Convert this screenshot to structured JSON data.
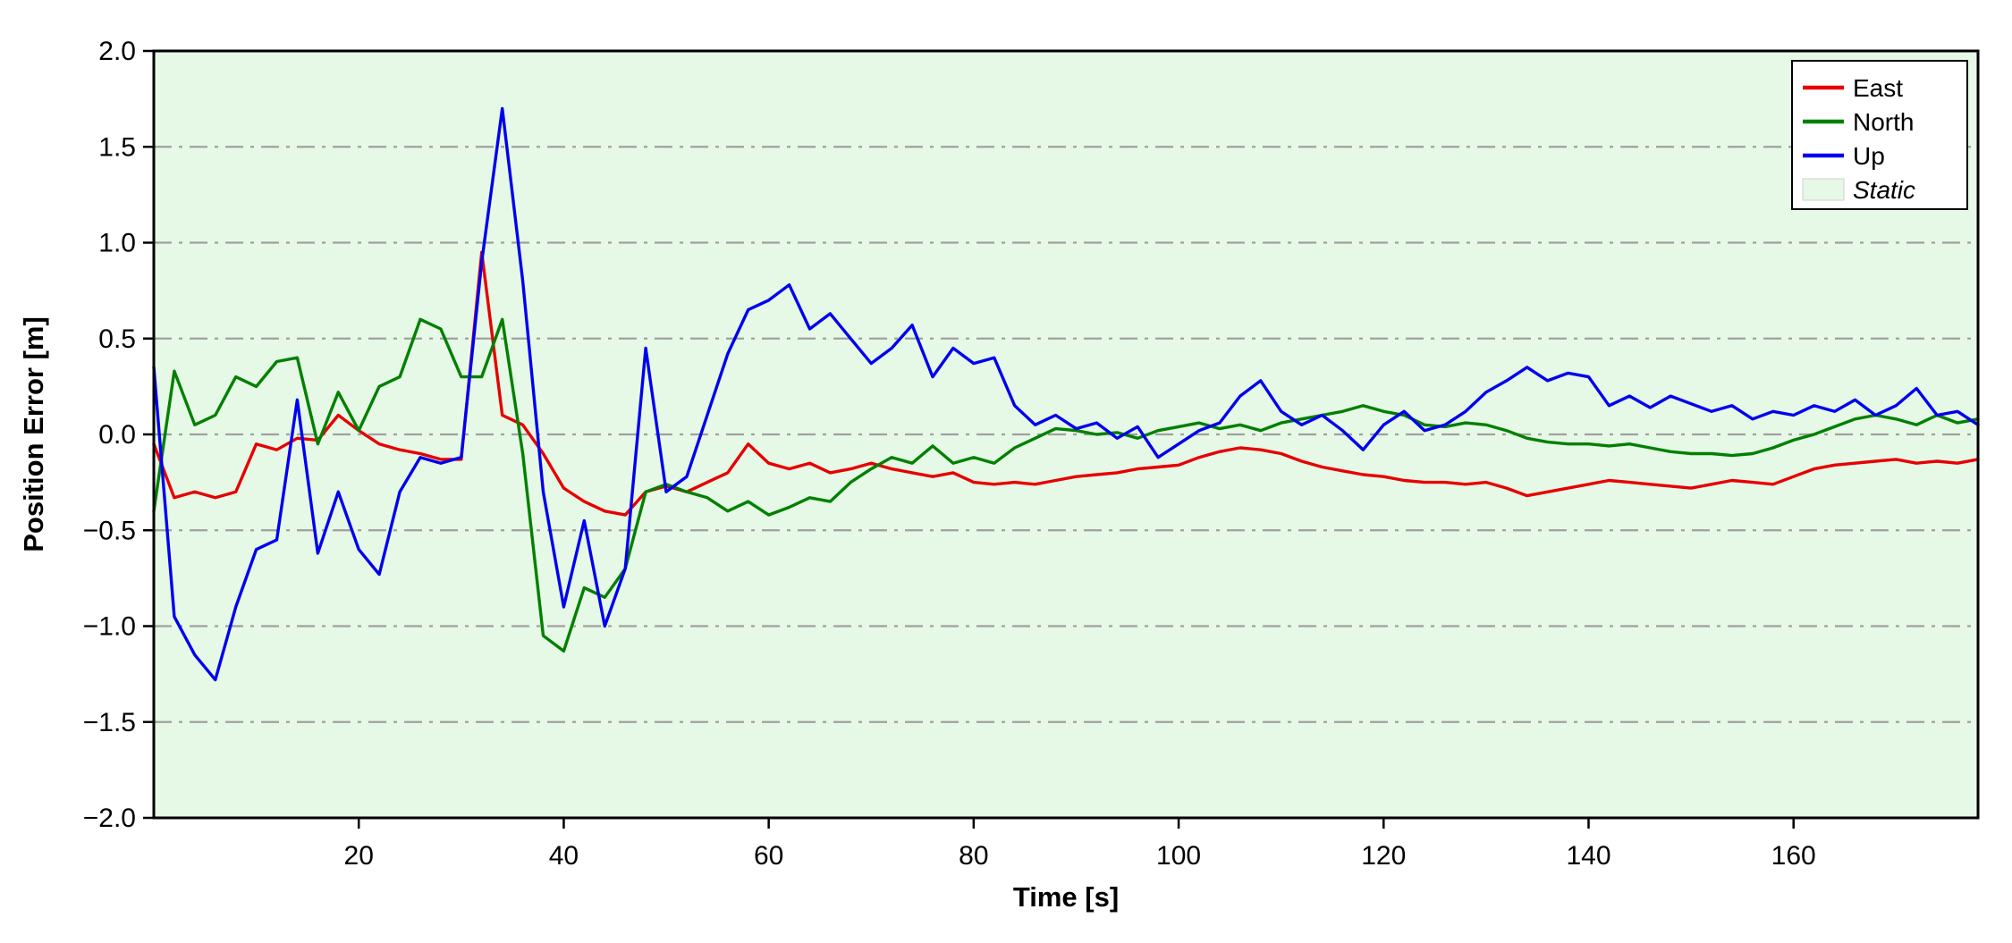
{
  "chart_data": {
    "type": "line",
    "title": "",
    "xlabel": "Time [s]",
    "ylabel": "Position Error [m]",
    "xlim": [
      0,
      178
    ],
    "ylim": [
      -2.0,
      2.0
    ],
    "xticks": [
      20,
      40,
      60,
      80,
      100,
      120,
      140,
      160
    ],
    "yticks": [
      -2.0,
      -1.5,
      -1.0,
      -0.5,
      0.0,
      0.5,
      1.0,
      1.5,
      2.0
    ],
    "grid": "horizontal-dash-dot",
    "grid_color": "#a0a0a0",
    "axis_color": "#000000",
    "background_color": "#e6f8e6",
    "background_label": "Static",
    "legend_position": "upper-right",
    "legend": {
      "entries": [
        {
          "label": "East",
          "swatch": "line",
          "color": "#e60000",
          "italic": false
        },
        {
          "label": "North",
          "swatch": "line",
          "color": "#008000",
          "italic": false
        },
        {
          "label": "Up",
          "swatch": "line",
          "color": "#0000ee",
          "italic": false
        },
        {
          "label": "Static",
          "swatch": "patch",
          "color": "#e6f8e6",
          "italic": true
        }
      ]
    },
    "x": [
      0,
      2,
      4,
      6,
      8,
      10,
      12,
      14,
      16,
      18,
      20,
      22,
      24,
      26,
      28,
      30,
      32,
      34,
      36,
      38,
      40,
      42,
      44,
      46,
      48,
      50,
      52,
      54,
      56,
      58,
      60,
      62,
      64,
      66,
      68,
      70,
      72,
      74,
      76,
      78,
      80,
      82,
      84,
      86,
      88,
      90,
      92,
      94,
      96,
      98,
      100,
      102,
      104,
      106,
      108,
      110,
      112,
      114,
      116,
      118,
      120,
      122,
      124,
      126,
      128,
      130,
      132,
      134,
      136,
      138,
      140,
      142,
      144,
      146,
      148,
      150,
      152,
      154,
      156,
      158,
      160,
      162,
      164,
      166,
      168,
      170,
      172,
      174,
      176,
      178
    ],
    "series": [
      {
        "name": "East",
        "color": "#e60000",
        "values": [
          -0.05,
          -0.33,
          -0.3,
          -0.33,
          -0.3,
          -0.05,
          -0.08,
          -0.02,
          -0.03,
          0.1,
          0.02,
          -0.05,
          -0.08,
          -0.1,
          -0.13,
          -0.13,
          0.95,
          0.1,
          0.05,
          -0.1,
          -0.28,
          -0.35,
          -0.4,
          -0.42,
          -0.3,
          -0.27,
          -0.3,
          -0.25,
          -0.2,
          -0.05,
          -0.15,
          -0.18,
          -0.15,
          -0.2,
          -0.18,
          -0.15,
          -0.18,
          -0.2,
          -0.22,
          -0.2,
          -0.25,
          -0.26,
          -0.25,
          -0.26,
          -0.24,
          -0.22,
          -0.21,
          -0.2,
          -0.18,
          -0.17,
          -0.16,
          -0.12,
          -0.09,
          -0.07,
          -0.08,
          -0.1,
          -0.14,
          -0.17,
          -0.19,
          -0.21,
          -0.22,
          -0.24,
          -0.25,
          -0.25,
          -0.26,
          -0.25,
          -0.28,
          -0.32,
          -0.3,
          -0.28,
          -0.26,
          -0.24,
          -0.25,
          -0.26,
          -0.27,
          -0.28,
          -0.26,
          -0.24,
          -0.25,
          -0.26,
          -0.22,
          -0.18,
          -0.16,
          -0.15,
          -0.14,
          -0.13,
          -0.15,
          -0.14,
          -0.15,
          -0.13
        ]
      },
      {
        "name": "North",
        "color": "#008000",
        "values": [
          -0.4,
          0.33,
          0.05,
          0.1,
          0.3,
          0.25,
          0.38,
          0.4,
          -0.05,
          0.22,
          0.02,
          0.25,
          0.3,
          0.6,
          0.55,
          0.3,
          0.3,
          0.6,
          -0.1,
          -1.05,
          -1.13,
          -0.8,
          -0.85,
          -0.7,
          -0.3,
          -0.26,
          -0.3,
          -0.33,
          -0.4,
          -0.35,
          -0.42,
          -0.38,
          -0.33,
          -0.35,
          -0.25,
          -0.18,
          -0.12,
          -0.15,
          -0.06,
          -0.15,
          -0.12,
          -0.15,
          -0.07,
          -0.02,
          0.03,
          0.02,
          0.0,
          0.01,
          -0.02,
          0.02,
          0.04,
          0.06,
          0.03,
          0.05,
          0.02,
          0.06,
          0.08,
          0.1,
          0.12,
          0.15,
          0.12,
          0.1,
          0.05,
          0.04,
          0.06,
          0.05,
          0.02,
          -0.02,
          -0.04,
          -0.05,
          -0.05,
          -0.06,
          -0.05,
          -0.07,
          -0.09,
          -0.1,
          -0.1,
          -0.11,
          -0.1,
          -0.07,
          -0.03,
          0.0,
          0.04,
          0.08,
          0.1,
          0.08,
          0.05,
          0.1,
          0.06,
          0.08
        ]
      },
      {
        "name": "Up",
        "color": "#0000ee",
        "values": [
          0.35,
          -0.95,
          -1.15,
          -1.28,
          -0.9,
          -0.6,
          -0.55,
          0.18,
          -0.62,
          -0.3,
          -0.6,
          -0.73,
          -0.3,
          -0.12,
          -0.15,
          -0.12,
          0.9,
          1.7,
          0.8,
          -0.3,
          -0.9,
          -0.45,
          -1.0,
          -0.7,
          0.45,
          -0.3,
          -0.22,
          0.1,
          0.42,
          0.65,
          0.7,
          0.78,
          0.55,
          0.63,
          0.5,
          0.37,
          0.45,
          0.57,
          0.3,
          0.45,
          0.37,
          0.4,
          0.15,
          0.05,
          0.1,
          0.03,
          0.06,
          -0.02,
          0.04,
          -0.12,
          -0.05,
          0.02,
          0.06,
          0.2,
          0.28,
          0.12,
          0.05,
          0.1,
          0.02,
          -0.08,
          0.05,
          0.12,
          0.02,
          0.05,
          0.12,
          0.22,
          0.28,
          0.35,
          0.28,
          0.32,
          0.3,
          0.15,
          0.2,
          0.14,
          0.2,
          0.16,
          0.12,
          0.15,
          0.08,
          0.12,
          0.1,
          0.15,
          0.12,
          0.18,
          0.1,
          0.15,
          0.24,
          0.1,
          0.12,
          0.05
        ]
      }
    ]
  }
}
